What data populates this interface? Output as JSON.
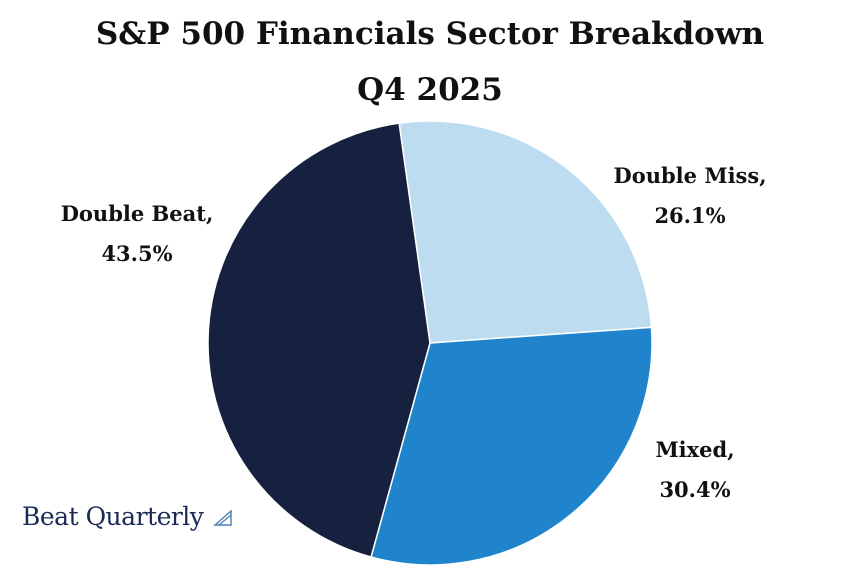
{
  "chart_data": {
    "type": "pie",
    "title": "S&P 500 Financials Sector Breakdown",
    "subtitle": "Q4 2025",
    "slices": [
      {
        "label": "Double Miss",
        "value": 26.1,
        "value_text": "26.1%",
        "color": "#bddcf0"
      },
      {
        "label": "Mixed",
        "value": 30.4,
        "value_text": "30.4%",
        "color": "#1f84cc"
      },
      {
        "label": "Double Beat",
        "value": 43.5,
        "value_text": "43.5%",
        "color": "#16203f"
      }
    ]
  },
  "brand": {
    "name": "Beat Quarterly",
    "icon": "sailboat-icon"
  }
}
